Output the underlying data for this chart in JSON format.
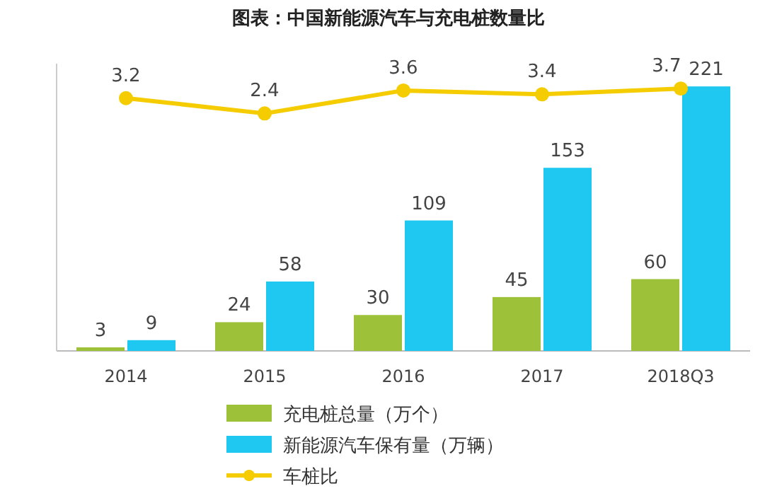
{
  "chart_data": {
    "type": "bar",
    "title": "图表：中国新能源汽车与充电桩数量比",
    "categories": [
      "2014",
      "2015",
      "2016",
      "2017",
      "2018Q3"
    ],
    "series": [
      {
        "name": "充电桩总量（万个）",
        "color": "#9dc23a",
        "values": [
          3,
          24,
          30,
          45,
          60
        ]
      },
      {
        "name": "新能源汽车保有量（万辆）",
        "color": "#1ec8f0",
        "values": [
          9,
          58,
          109,
          153,
          221
        ]
      },
      {
        "name": "车桩比",
        "type": "line",
        "axis": "y2",
        "color": "#f5cc00",
        "values": [
          3.2,
          2.4,
          3.6,
          3.4,
          3.7
        ]
      }
    ],
    "ylim": [
      0,
      240
    ],
    "y2lim": [
      -10,
      5
    ],
    "data_labels": true,
    "legend": "bottom",
    "marker": "circle"
  }
}
